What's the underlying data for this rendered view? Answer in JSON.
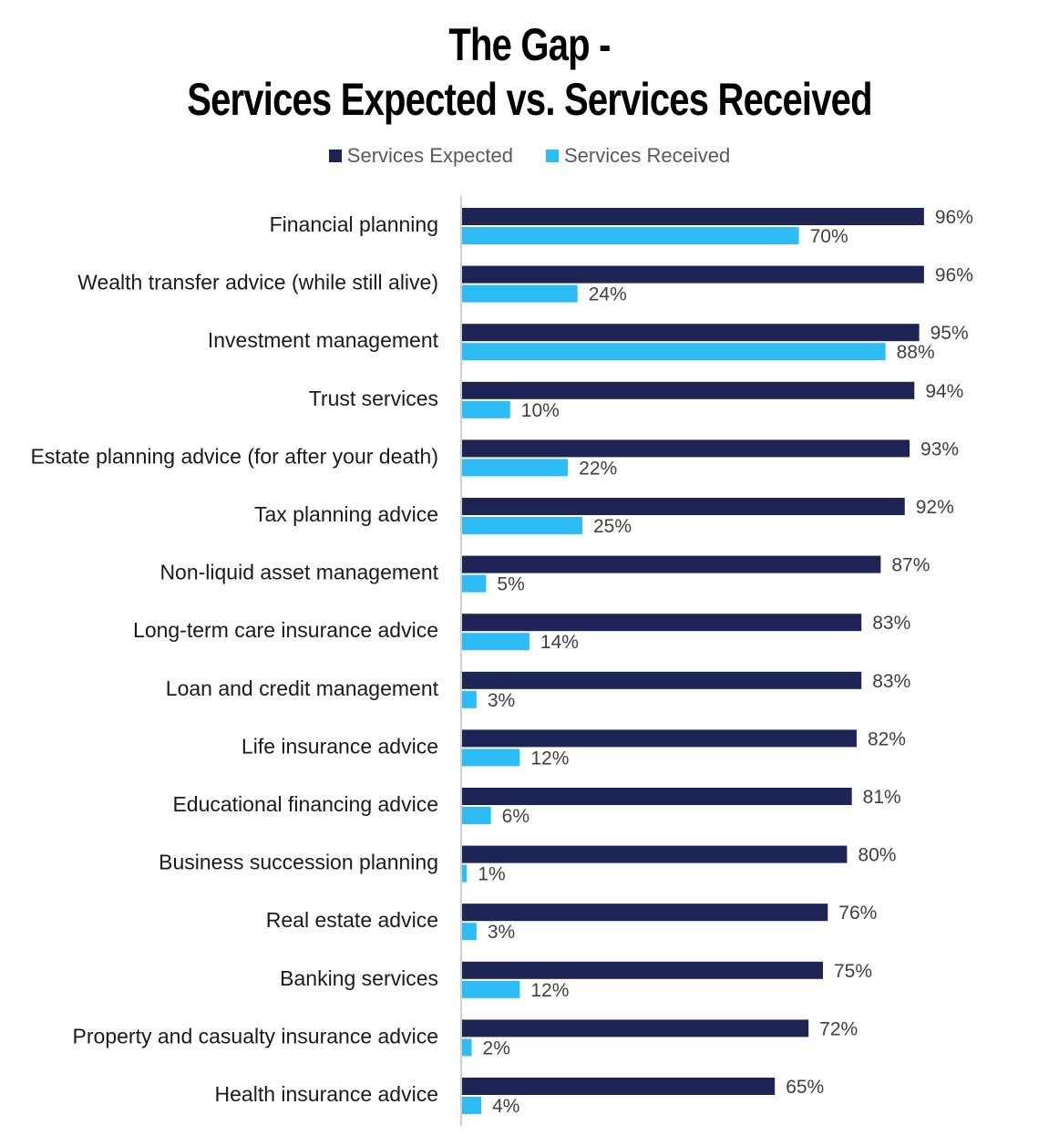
{
  "chart_data": {
    "type": "bar",
    "orientation": "horizontal",
    "title": [
      "The Gap -",
      "Services Expected vs. Services Received"
    ],
    "categories": [
      "Financial planning",
      "Wealth transfer advice (while still alive)",
      "Investment management",
      "Trust services",
      "Estate planning advice (for after your death)",
      "Tax planning advice",
      "Non-liquid asset management",
      "Long-term care insurance advice",
      "Loan and credit management",
      "Life insurance advice",
      "Educational financing advice",
      "Business succession planning",
      "Real estate advice",
      "Banking services",
      "Property and casualty insurance advice",
      "Health insurance advice"
    ],
    "series": [
      {
        "name": "Services Expected",
        "color": "#1f2457",
        "values": [
          96,
          96,
          95,
          94,
          93,
          92,
          87,
          83,
          83,
          82,
          81,
          80,
          76,
          75,
          72,
          65
        ]
      },
      {
        "name": "Services Received",
        "color": "#2ebcf4",
        "values": [
          70,
          24,
          88,
          10,
          22,
          25,
          5,
          14,
          3,
          12,
          6,
          1,
          3,
          12,
          2,
          4
        ]
      }
    ],
    "value_suffix": "%",
    "xlim": [
      0,
      100
    ],
    "legend": "top-center",
    "grid": false
  }
}
